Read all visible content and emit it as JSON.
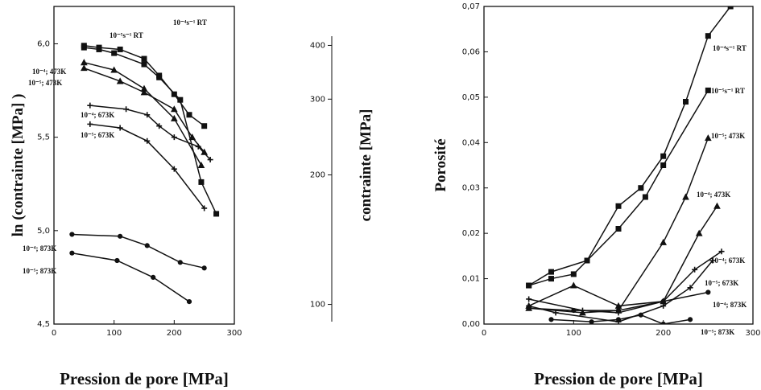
{
  "chart_data": [
    {
      "type": "line",
      "xlabel": "Pression de pore [MPa]",
      "ylabel": "ln (contrainte [MPa] )",
      "ylabel_right": "contrainte [MPa]",
      "xlim": [
        0,
        300
      ],
      "ylim": [
        4.5,
        6.2
      ],
      "xticks": [
        "0",
        "100",
        "200",
        "300"
      ],
      "yticks": [
        "4,5",
        "5,0",
        "5,5",
        "6,0"
      ],
      "yticks_right": [
        "100",
        "200",
        "300",
        "400"
      ],
      "yticks_right_values": [
        100,
        200,
        300,
        400
      ],
      "series": [
        {
          "name": "10⁻⁴s⁻¹ RT",
          "marker": "square",
          "x": [
            50,
            75,
            110,
            150,
            175,
            200,
            225,
            250
          ],
          "y": [
            5.99,
            5.98,
            5.97,
            5.92,
            5.83,
            5.73,
            5.62,
            5.56
          ]
        },
        {
          "name": "10⁻⁵s⁻¹ RT",
          "marker": "square",
          "x": [
            50,
            75,
            100,
            150,
            175,
            210,
            245,
            270
          ],
          "y": [
            5.98,
            5.97,
            5.95,
            5.89,
            5.82,
            5.7,
            5.26,
            5.09
          ]
        },
        {
          "name": "10⁻⁴; 473K",
          "marker": "triangle",
          "x": [
            50,
            100,
            150,
            200,
            245
          ],
          "y": [
            5.9,
            5.86,
            5.76,
            5.6,
            5.35
          ]
        },
        {
          "name": "10⁻⁵; 473K",
          "marker": "triangle",
          "x": [
            50,
            110,
            150,
            200,
            230,
            250
          ],
          "y": [
            5.87,
            5.8,
            5.74,
            5.65,
            5.5,
            5.42
          ]
        },
        {
          "name": "10⁻⁴; 673K",
          "marker": "plus",
          "x": [
            60,
            120,
            155,
            175,
            200,
            240,
            260
          ],
          "y": [
            5.67,
            5.65,
            5.62,
            5.56,
            5.5,
            5.45,
            5.38
          ]
        },
        {
          "name": "10⁻⁵; 673K",
          "marker": "plus",
          "x": [
            60,
            110,
            155,
            200,
            250
          ],
          "y": [
            5.57,
            5.55,
            5.48,
            5.33,
            5.12
          ]
        },
        {
          "name": "10⁻⁴; 873K",
          "marker": "dot",
          "x": [
            30,
            110,
            155,
            210,
            250
          ],
          "y": [
            4.98,
            4.97,
            4.92,
            4.83,
            4.8
          ]
        },
        {
          "name": "10⁻⁵; 873K",
          "marker": "dot",
          "x": [
            30,
            105,
            165,
            225
          ],
          "y": [
            4.88,
            4.84,
            4.75,
            4.62
          ]
        }
      ]
    },
    {
      "type": "line",
      "xlabel": "Pression de pore [MPa]",
      "ylabel": "Porosité",
      "xlim": [
        0,
        300
      ],
      "ylim": [
        0,
        0.07
      ],
      "xticks": [
        "0",
        "100",
        "200",
        "300"
      ],
      "yticks": [
        "0,00",
        "0,01",
        "0,02",
        "0,03",
        "0,04",
        "0,05",
        "0,06",
        "0,07"
      ],
      "series": [
        {
          "name": "10⁻⁴s⁻¹ RT",
          "marker": "square",
          "x": [
            50,
            75,
            115,
            150,
            175,
            200,
            225,
            250,
            275
          ],
          "y": [
            0.0085,
            0.0115,
            0.014,
            0.026,
            0.03,
            0.037,
            0.049,
            0.0635,
            0.07
          ]
        },
        {
          "name": "10⁻⁵s⁻¹ RT",
          "marker": "square",
          "x": [
            50,
            75,
            100,
            150,
            180,
            200,
            250
          ],
          "y": [
            0.0085,
            0.01,
            0.011,
            0.021,
            0.028,
            0.035,
            0.0515
          ]
        },
        {
          "name": "10⁻⁵; 473K",
          "marker": "triangle",
          "x": [
            50,
            110,
            150,
            200,
            225,
            250
          ],
          "y": [
            0.0035,
            0.0025,
            0.003,
            0.018,
            0.028,
            0.041
          ]
        },
        {
          "name": "10⁻⁴; 473K",
          "marker": "triangle",
          "x": [
            50,
            100,
            150,
            200,
            240,
            260
          ],
          "y": [
            0.004,
            0.0085,
            0.004,
            0.005,
            0.02,
            0.026
          ]
        },
        {
          "name": "10⁻⁴; 673K",
          "marker": "plus",
          "x": [
            50,
            110,
            150,
            200,
            235,
            265
          ],
          "y": [
            0.0055,
            0.003,
            0.0025,
            0.005,
            0.012,
            0.016
          ]
        },
        {
          "name": "10⁻⁵; 673K",
          "marker": "plus",
          "x": [
            50,
            80,
            150,
            200,
            230,
            255
          ],
          "y": [
            0.004,
            0.0025,
            0.0005,
            0.004,
            0.008,
            0.014
          ]
        },
        {
          "name": "10⁻⁴; 873K",
          "marker": "dot",
          "x": [
            50,
            100,
            150,
            200,
            250
          ],
          "y": [
            0.0035,
            0.003,
            0.003,
            0.005,
            0.007
          ]
        },
        {
          "name": "10⁻⁵; 873K",
          "marker": "dot",
          "x": [
            75,
            120,
            150,
            175,
            200,
            230
          ],
          "y": [
            0.001,
            0.0005,
            0.001,
            0.002,
            0.0,
            0.001
          ]
        }
      ]
    }
  ]
}
